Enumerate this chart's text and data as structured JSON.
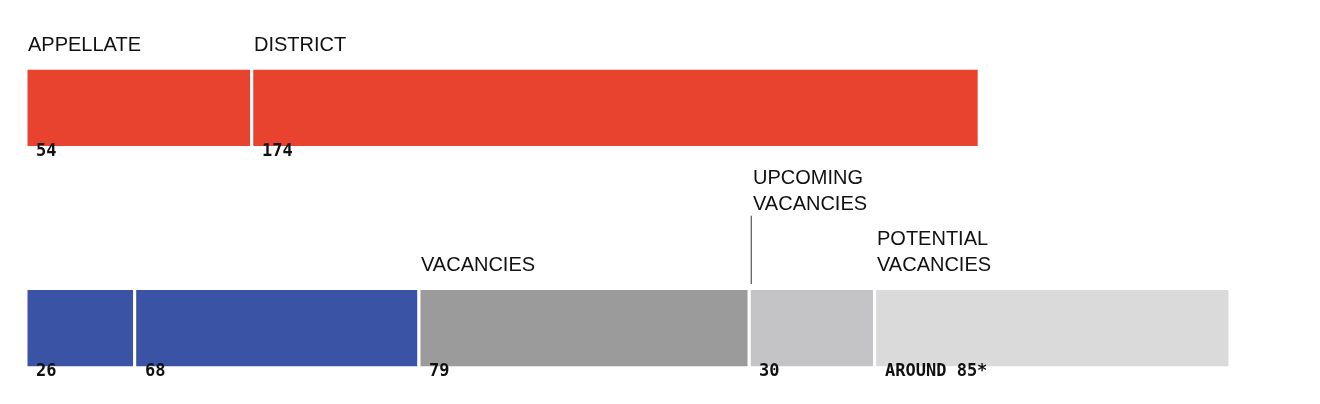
{
  "chart_data": {
    "type": "bar",
    "orientation": "horizontal",
    "stacked": true,
    "categories": [
      null,
      null
    ],
    "legend": false,
    "tick_labels": false,
    "series": [
      {
        "name": "APPELLATE",
        "color": "#e8432f",
        "values": [
          54,
          null
        ],
        "value_labels": [
          "54",
          null
        ]
      },
      {
        "name": "DISTRICT",
        "color": "#e8432f",
        "values": [
          174,
          null
        ],
        "value_labels": [
          "174",
          null
        ]
      },
      {
        "color": "#3a53a4",
        "values": [
          null,
          26
        ],
        "value_labels": [
          null,
          "26"
        ]
      },
      {
        "color": "#3a53a4",
        "values": [
          null,
          68
        ],
        "value_labels": [
          null,
          "68"
        ]
      },
      {
        "name": "VACANCIES",
        "color": "#9b9b9b",
        "values": [
          null,
          79
        ],
        "value_labels": [
          null,
          "79"
        ]
      },
      {
        "name": "UPCOMING\nVACANCIES",
        "color": "#c4c4c6",
        "values": [
          null,
          30
        ],
        "value_labels": [
          null,
          "30"
        ]
      },
      {
        "name": "POTENTIAL\nVACANCIES",
        "color": "#dadada",
        "values": [
          null,
          85
        ],
        "value_labels": [
          null,
          "AROUND 85*"
        ]
      }
    ]
  }
}
